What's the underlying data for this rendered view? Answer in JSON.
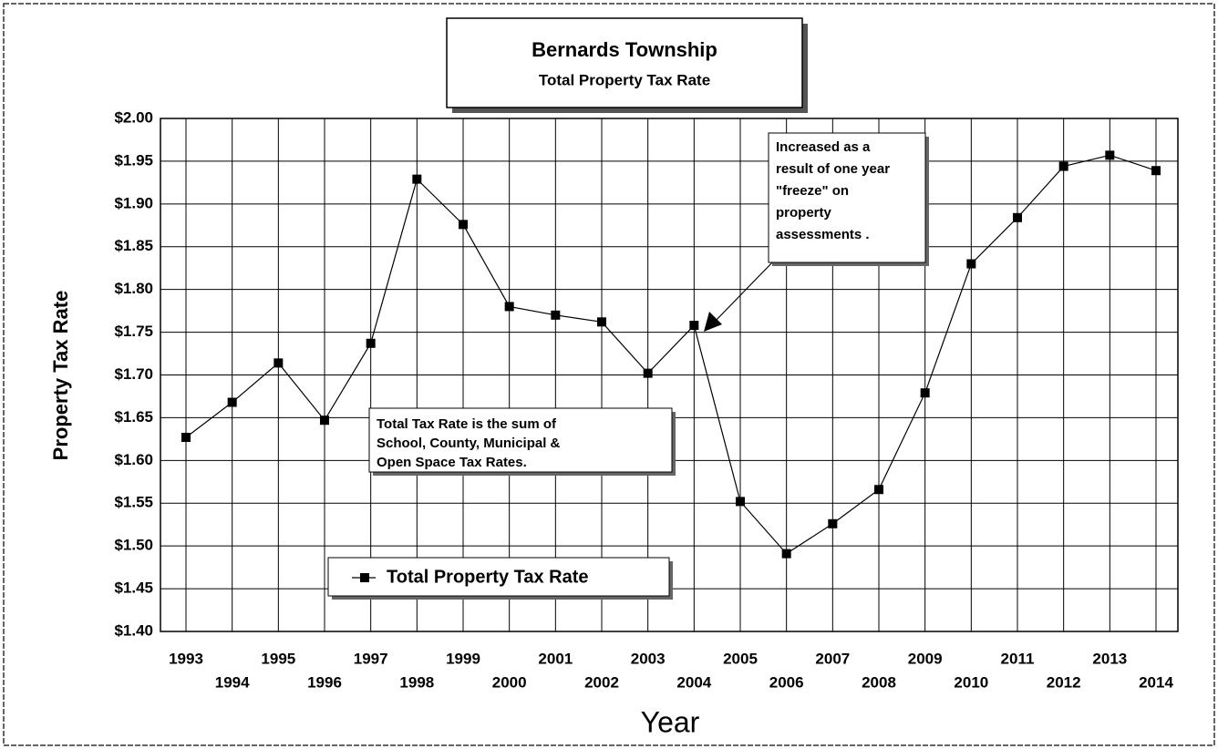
{
  "chart_data": {
    "type": "line",
    "title": "Bernards Township",
    "subtitle": "Total Property Tax Rate",
    "y_label": "Property Tax Rate",
    "x_label": "Year",
    "categories": [
      "1993",
      "1994",
      "1995",
      "1996",
      "1997",
      "1998",
      "1999",
      "2000",
      "2001",
      "2002",
      "2003",
      "2004",
      "2005",
      "2006",
      "2007",
      "2008",
      "2009",
      "2010",
      "2011",
      "2012",
      "2013",
      "2014"
    ],
    "series": [
      {
        "name": "Total Property Tax Rate",
        "color": "#000000",
        "values": [
          1.627,
          1.668,
          1.714,
          1.647,
          1.737,
          1.929,
          1.876,
          1.78,
          1.77,
          1.762,
          1.702,
          1.758,
          1.552,
          1.491,
          1.526,
          1.566,
          1.679,
          1.83,
          1.884,
          1.944,
          1.957,
          1.939
        ]
      }
    ],
    "ylim": [
      1.4,
      2.0
    ],
    "yticks": [
      {
        "value": 1.4,
        "label": "$1.40"
      },
      {
        "value": 1.45,
        "label": "$1.45"
      },
      {
        "value": 1.5,
        "label": "$1.50"
      },
      {
        "value": 1.55,
        "label": "$1.55"
      },
      {
        "value": 1.6,
        "label": "$1.60"
      },
      {
        "value": 1.65,
        "label": "$1.65"
      },
      {
        "value": 1.7,
        "label": "$1.70"
      },
      {
        "value": 1.75,
        "label": "$1.75"
      },
      {
        "value": 1.8,
        "label": "$1.80"
      },
      {
        "value": 1.85,
        "label": "$1.85"
      },
      {
        "value": 1.9,
        "label": "$1.90"
      },
      {
        "value": 1.95,
        "label": "$1.95"
      },
      {
        "value": 2.0,
        "label": "$2.00"
      }
    ],
    "grid": true,
    "annotations": [
      [
        "Increased as a",
        "result of one year",
        "\"freeze\" on",
        "property",
        "assessments ."
      ],
      [
        "Total Tax Rate is the sum of",
        "School, County, Municipal &",
        "Open Space Tax Rates."
      ]
    ]
  }
}
